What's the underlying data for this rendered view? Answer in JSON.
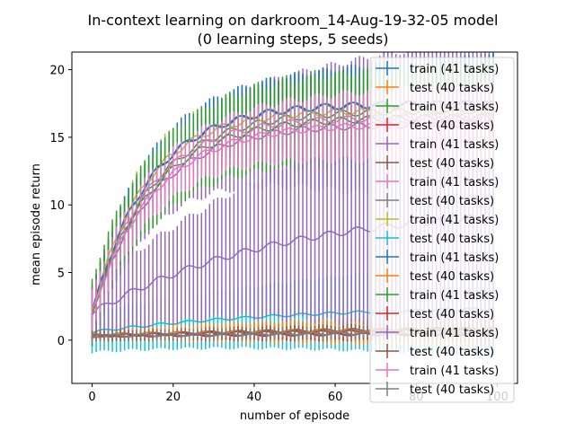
{
  "chart_data": {
    "type": "line",
    "title_line1": "In-context learning on darkroom_14-Aug-19-32-05 model",
    "title_line2": "(0 learning steps, 5 seeds)",
    "xlabel": "number of episode",
    "ylabel": "mean episode return",
    "xlim": [
      -5,
      105
    ],
    "ylim": [
      -3.2,
      21.3
    ],
    "xticks": [
      0,
      20,
      40,
      60,
      80,
      100
    ],
    "yticks": [
      0,
      5,
      10,
      15,
      20
    ],
    "grid": false,
    "legend_placement": "right",
    "palette": [
      "#1f77b4",
      "#ff7f0e",
      "#2ca02c",
      "#d62728",
      "#9467bd",
      "#8c564b",
      "#e377c2",
      "#7f7f7f",
      "#bcbd22",
      "#17becf"
    ],
    "episodes_per_series": 100,
    "legend": [
      "train (41 tasks)",
      "test (40 tasks)",
      "train (41 tasks)",
      "test (40 tasks)",
      "train (41 tasks)",
      "test (40 tasks)",
      "train (41 tasks)",
      "test (40 tasks)",
      "train (41 tasks)",
      "test (40 tasks)",
      "train (41 tasks)",
      "test (40 tasks)",
      "train (41 tasks)",
      "test (40 tasks)",
      "train (41 tasks)",
      "test (40 tasks)",
      "train (41 tasks)",
      "test (40 tasks)"
    ],
    "series": [
      {
        "color": "#1f77b4",
        "start": 2.0,
        "end": 17.5,
        "tau": 14,
        "err_start": 1.5,
        "err_end": 3.5
      },
      {
        "color": "#ff7f0e",
        "start": 0.4,
        "end": 0.9,
        "tau": 60,
        "err_start": 0.5,
        "err_end": 1.0
      },
      {
        "color": "#2ca02c",
        "start": 2.0,
        "end": 17.0,
        "tau": 15,
        "err_start": 2.0,
        "err_end": 4.0
      },
      {
        "color": "#d62728",
        "start": 0.3,
        "end": 0.5,
        "tau": 60,
        "err_start": 0.3,
        "err_end": 0.6
      },
      {
        "color": "#9467bd",
        "start": 2.0,
        "end": 16.0,
        "tau": 15,
        "err_start": 1.8,
        "err_end": 6.5
      },
      {
        "color": "#8c564b",
        "start": 0.3,
        "end": 1.0,
        "tau": 60,
        "err_start": 0.4,
        "err_end": 0.8
      },
      {
        "color": "#e377c2",
        "start": 2.0,
        "end": 16.5,
        "tau": 14,
        "err_start": 1.5,
        "err_end": 3.0
      },
      {
        "color": "#7f7f7f",
        "start": 0.3,
        "end": 0.6,
        "tau": 60,
        "err_start": 0.3,
        "err_end": 0.6
      },
      {
        "color": "#bcbd22",
        "start": 2.0,
        "end": 17.0,
        "tau": 13,
        "err_start": 1.5,
        "err_end": 3.0
      },
      {
        "color": "#17becf",
        "start": 0.6,
        "end": 2.6,
        "tau": 50,
        "err_start": 1.5,
        "err_end": 3.5
      },
      {
        "color": "#1f77b4",
        "start": 2.0,
        "end": 17.5,
        "tau": 14,
        "err_start": 1.5,
        "err_end": 3.5
      },
      {
        "color": "#ff7f0e",
        "start": 0.4,
        "end": 0.8,
        "tau": 60,
        "err_start": 0.4,
        "err_end": 1.2
      },
      {
        "color": "#2ca02c",
        "start": 2.0,
        "end": 16.5,
        "tau": 15,
        "err_start": 2.5,
        "err_end": 4.0
      },
      {
        "color": "#d62728",
        "start": 0.3,
        "end": 0.5,
        "tau": 60,
        "err_start": 0.3,
        "err_end": 0.5
      },
      {
        "color": "#9467bd",
        "start": 2.0,
        "end": 10.0,
        "tau": 45,
        "err_start": 2.0,
        "err_end": 9.5
      },
      {
        "color": "#8c564b",
        "start": 0.3,
        "end": 0.8,
        "tau": 60,
        "err_start": 0.3,
        "err_end": 0.6
      },
      {
        "color": "#e377c2",
        "start": 2.0,
        "end": 16.0,
        "tau": 15,
        "err_start": 1.5,
        "err_end": 3.0
      },
      {
        "color": "#7f7f7f",
        "start": 0.3,
        "end": 0.6,
        "tau": 60,
        "err_start": 0.3,
        "err_end": 0.5
      }
    ]
  }
}
